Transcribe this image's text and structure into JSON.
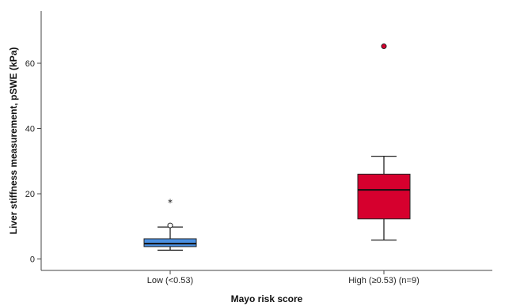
{
  "chart_data": {
    "type": "box",
    "xlabel": "Mayo risk score",
    "ylabel": "Liver stiffness measurement, pSWE (kPa)",
    "ylim": [
      -3.5,
      76
    ],
    "yticks": [
      0,
      20,
      40,
      60
    ],
    "grid": false,
    "categories": [
      "Low (<0.53)",
      "High (≥0.53) (n=9)"
    ],
    "boxes": [
      {
        "category": "Low (<0.53)",
        "color": "#4a90e2",
        "whisker_low": 2.7,
        "q1": 3.8,
        "median": 4.7,
        "q3": 6.2,
        "whisker_high": 9.8,
        "outliers": [
          {
            "value": 10.3,
            "marker": "circle"
          },
          {
            "value": 17.5,
            "marker": "star"
          }
        ]
      },
      {
        "category": "High (≥0.53) (n=9)",
        "color": "#d6002e",
        "whisker_low": 5.8,
        "q1": 12.3,
        "median": 21.2,
        "q3": 26.0,
        "whisker_high": 31.5,
        "outliers": [
          {
            "value": 65.2,
            "marker": "circle"
          }
        ]
      }
    ]
  }
}
